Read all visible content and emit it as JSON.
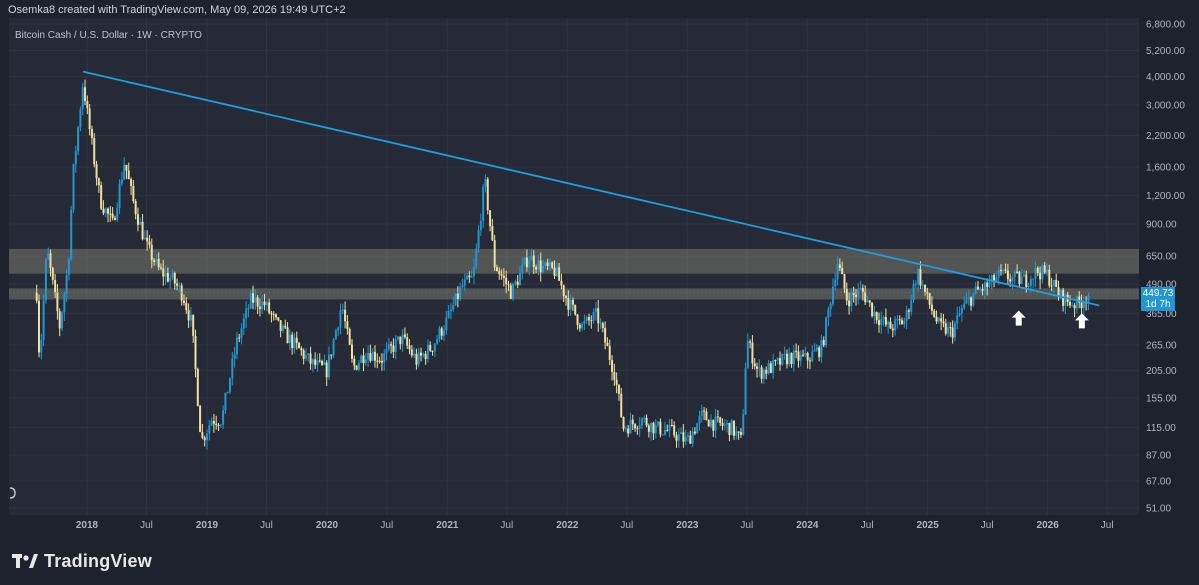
{
  "header": {
    "attribution": "Osemka8 created with TradingView.com, May 09, 2026 19:49 UTC+2"
  },
  "footer": {
    "brand": "TradingView"
  },
  "colors": {
    "background": "#1e222d",
    "pane": "#262a36",
    "up": "#2196d3",
    "down": "#f0e0a0",
    "trendline": "#1e9ee0",
    "zone": "#8a8a7a",
    "price_tag": "#2196d3"
  },
  "chart_data": {
    "type": "candlestick",
    "title": "Bitcoin Cash / U.S. Dollar · 1W · CRYPTO",
    "scale": "log",
    "y_ticks": [
      "6,800.00",
      "5,200.00",
      "4,000.00",
      "3,000.00",
      "2,200.00",
      "1,600.00",
      "1,200.00",
      "900.00",
      "650.00",
      "490.00",
      "365.00",
      "265.00",
      "205.00",
      "155.00",
      "115.00",
      "87.00",
      "67.00",
      "51.00"
    ],
    "x_ticks": [
      "2018",
      "Jul",
      "2019",
      "Jul",
      "2020",
      "Jul",
      "2021",
      "Jul",
      "2022",
      "Jul",
      "2023",
      "Jul",
      "2024",
      "Jul",
      "2025",
      "Jul",
      "2026",
      "Jul"
    ],
    "current_price": {
      "value": "449.73",
      "countdown": "1d 7h"
    },
    "trendline": {
      "from": [
        "2017-12-20",
        4200
      ],
      "to": [
        "2026-06-07",
        395
      ]
    },
    "zones": [
      {
        "from": 545,
        "to": 700
      },
      {
        "from": 420,
        "to": 470
      }
    ],
    "markers": [
      {
        "type": "arrow-up",
        "date": "2025-10-05",
        "price": 375
      },
      {
        "type": "arrow-up",
        "date": "2026-04-15",
        "price": 365
      }
    ],
    "anchors": [
      [
        "2017-08-01",
        450
      ],
      [
        "2017-08-10",
        220
      ],
      [
        "2017-09-01",
        700
      ],
      [
        "2017-10-10",
        320
      ],
      [
        "2017-11-05",
        600
      ],
      [
        "2017-11-20",
        1500
      ],
      [
        "2017-12-20",
        3800
      ],
      [
        "2018-01-01",
        2800
      ],
      [
        "2018-02-10",
        1150
      ],
      [
        "2018-03-20",
        900
      ],
      [
        "2018-04-25",
        1700
      ],
      [
        "2018-05-20",
        1150
      ],
      [
        "2018-07-01",
        720
      ],
      [
        "2018-08-10",
        560
      ],
      [
        "2018-09-20",
        510
      ],
      [
        "2018-10-20",
        440
      ],
      [
        "2018-11-15",
        330
      ],
      [
        "2018-12-15",
        100
      ],
      [
        "2019-01-15",
        125
      ],
      [
        "2019-02-15",
        125
      ],
      [
        "2019-04-01",
        270
      ],
      [
        "2019-05-15",
        420
      ],
      [
        "2019-06-25",
        400
      ],
      [
        "2019-08-05",
        320
      ],
      [
        "2019-09-25",
        265
      ],
      [
        "2019-11-15",
        220
      ],
      [
        "2019-12-31",
        205
      ],
      [
        "2020-02-15",
        400
      ],
      [
        "2020-03-20",
        210
      ],
      [
        "2020-05-01",
        250
      ],
      [
        "2020-06-15",
        230
      ],
      [
        "2020-08-15",
        285
      ],
      [
        "2020-09-30",
        225
      ],
      [
        "2020-11-15",
        260
      ],
      [
        "2020-12-31",
        340
      ],
      [
        "2021-02-15",
        480
      ],
      [
        "2021-03-20",
        520
      ],
      [
        "2021-04-25",
        1400
      ],
      [
        "2021-05-25",
        600
      ],
      [
        "2021-07-15",
        450
      ],
      [
        "2021-09-05",
        650
      ],
      [
        "2021-10-15",
        580
      ],
      [
        "2021-11-25",
        560
      ],
      [
        "2021-12-31",
        420
      ],
      [
        "2022-02-15",
        320
      ],
      [
        "2022-04-01",
        360
      ],
      [
        "2022-05-25",
        200
      ],
      [
        "2022-06-20",
        115
      ],
      [
        "2022-08-15",
        125
      ],
      [
        "2022-09-25",
        115
      ],
      [
        "2022-11-15",
        110
      ],
      [
        "2022-12-31",
        100
      ],
      [
        "2023-02-15",
        130
      ],
      [
        "2023-03-25",
        120
      ],
      [
        "2023-05-15",
        115
      ],
      [
        "2023-06-15",
        100
      ],
      [
        "2023-07-01",
        280
      ],
      [
        "2023-08-05",
        200
      ],
      [
        "2023-09-25",
        215
      ],
      [
        "2023-11-05",
        235
      ],
      [
        "2023-12-31",
        230
      ],
      [
        "2024-02-15",
        260
      ],
      [
        "2024-04-01",
        620
      ],
      [
        "2024-05-01",
        420
      ],
      [
        "2024-06-15",
        460
      ],
      [
        "2024-07-20",
        370
      ],
      [
        "2024-09-05",
        315
      ],
      [
        "2024-10-25",
        340
      ],
      [
        "2024-12-01",
        560
      ],
      [
        "2024-12-31",
        420
      ],
      [
        "2025-02-05",
        320
      ],
      [
        "2025-03-15",
        300
      ],
      [
        "2025-04-15",
        380
      ],
      [
        "2025-05-25",
        450
      ],
      [
        "2025-07-01",
        480
      ],
      [
        "2025-08-10",
        540
      ],
      [
        "2025-09-15",
        520
      ],
      [
        "2025-10-25",
        510
      ],
      [
        "2025-12-01",
        560
      ],
      [
        "2025-12-31",
        540
      ],
      [
        "2026-02-05",
        440
      ],
      [
        "2026-03-05",
        410
      ],
      [
        "2026-04-05",
        400
      ],
      [
        "2026-05-09",
        449
      ]
    ]
  }
}
